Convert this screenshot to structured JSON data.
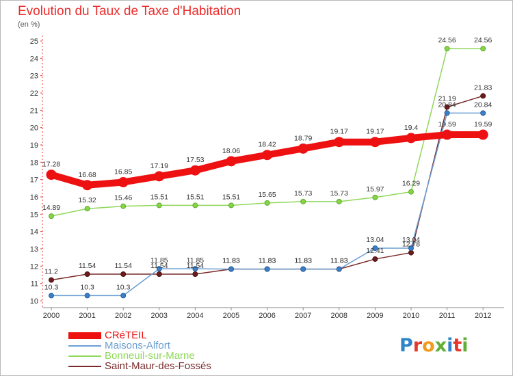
{
  "title": "Evolution du Taux de Taxe d'Habitation",
  "subtitle": "(en %)",
  "logo": {
    "text": "Proxiti",
    "colors": [
      "#2e83c9",
      "#e3392c",
      "#f29a1f",
      "#5fae35",
      "#2e83c9",
      "#e3392c",
      "#5fae35"
    ]
  },
  "chart_data": {
    "type": "line",
    "x": [
      "2000",
      "2001",
      "2002",
      "2003",
      "2004",
      "2005",
      "2006",
      "2007",
      "2008",
      "2009",
      "2010",
      "2011",
      "2012"
    ],
    "ylim": [
      10,
      25
    ],
    "yticks": [
      10,
      11,
      12,
      13,
      14,
      15,
      16,
      17,
      18,
      19,
      20,
      21,
      22,
      23,
      24,
      25
    ],
    "grid": false,
    "legend_position": "bottom-left",
    "series": [
      {
        "name": "CRéTEIL",
        "color": "#ee1111",
        "values": [
          17.28,
          16.68,
          16.85,
          17.19,
          17.53,
          18.06,
          18.42,
          18.79,
          19.17,
          19.17,
          19.4,
          19.59,
          19.59
        ]
      },
      {
        "name": "Maisons-Alfort",
        "color": "#6a9ed2",
        "values": [
          10.3,
          10.3,
          10.3,
          11.85,
          11.85,
          11.83,
          11.83,
          11.83,
          11.83,
          13.04,
          13.04,
          20.84,
          20.84
        ]
      },
      {
        "name": "Bonneuil-sur-Marne",
        "color": "#8fd85a",
        "values": [
          14.89,
          15.32,
          15.46,
          15.51,
          15.51,
          15.51,
          15.65,
          15.73,
          15.73,
          15.97,
          16.29,
          24.56,
          24.56
        ]
      },
      {
        "name": "Saint-Maur-des-Fossés",
        "color": "#7a2a2a",
        "values": [
          11.2,
          11.54,
          11.54,
          11.54,
          11.54,
          11.83,
          11.83,
          11.83,
          11.83,
          12.41,
          12.78,
          21.19,
          21.83
        ]
      }
    ]
  }
}
